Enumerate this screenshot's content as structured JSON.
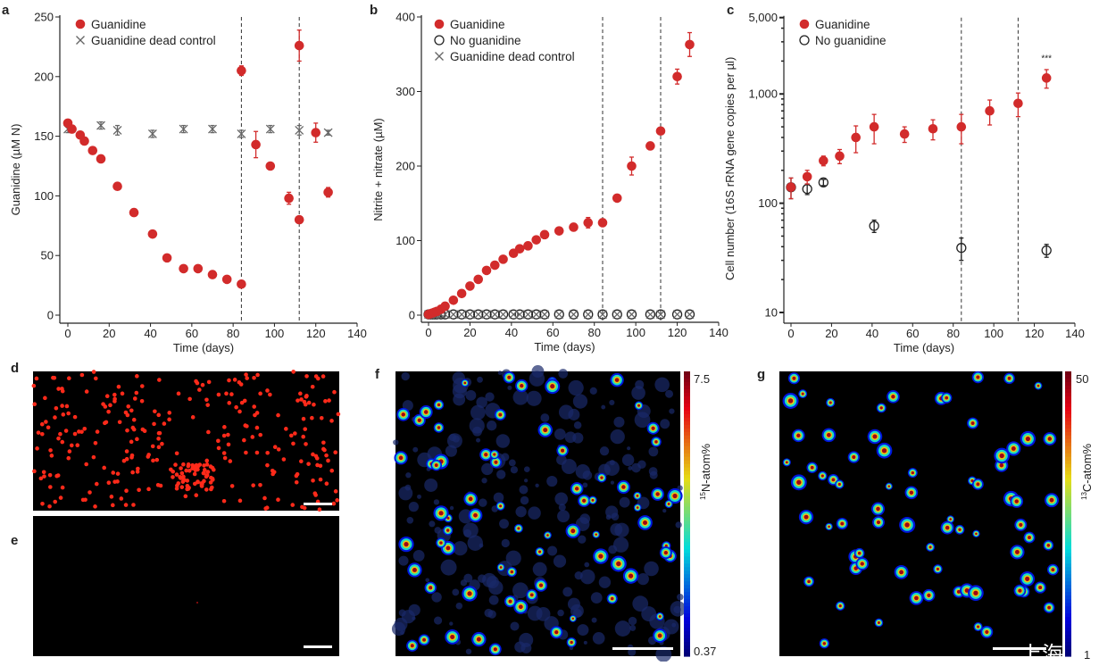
{
  "panels": {
    "a": "a",
    "b": "b",
    "c": "c",
    "d": "d",
    "e": "e",
    "f": "f",
    "g": "g"
  },
  "colors": {
    "guanidine": "#d22b2b",
    "control": "#666666",
    "open": "#222222"
  },
  "chart_data": [
    {
      "id": "a",
      "type": "scatter",
      "xlabel": "Time (days)",
      "ylabel": "Guanidine (µM N)",
      "xlim": [
        0,
        140
      ],
      "ylim": [
        0,
        250
      ],
      "xticks": [
        0,
        20,
        40,
        60,
        80,
        100,
        120,
        140
      ],
      "yticks": [
        0,
        50,
        100,
        150,
        200,
        250
      ],
      "vlines": [
        84,
        112
      ],
      "legend_position": "top-left",
      "series": [
        {
          "name": "Guanidine",
          "marker": "filled-circle",
          "x": [
            0,
            2,
            6,
            8,
            12,
            16,
            24,
            32,
            41,
            48,
            56,
            63,
            70,
            77,
            84,
            84,
            91,
            98,
            107,
            112,
            112,
            120,
            126
          ],
          "y": [
            161,
            156,
            151,
            146,
            138,
            131,
            108,
            86,
            68,
            48,
            39,
            39,
            34,
            30,
            26,
            205,
            143,
            125,
            98,
            80,
            226,
            153,
            103
          ],
          "err": [
            0,
            0,
            0,
            0,
            0,
            0,
            0,
            0,
            0,
            0,
            0,
            0,
            0,
            0,
            0,
            4,
            11,
            0,
            5,
            0,
            13,
            8,
            4
          ]
        },
        {
          "name": "Guanidine dead control",
          "marker": "cross",
          "x": [
            0,
            16,
            24,
            41,
            56,
            70,
            84,
            98,
            112,
            126
          ],
          "y": [
            156,
            159,
            155,
            152,
            156,
            156,
            152,
            156,
            155,
            153
          ],
          "err": [
            3,
            3,
            4,
            3,
            3,
            3,
            3,
            3,
            4,
            2
          ]
        }
      ]
    },
    {
      "id": "b",
      "type": "scatter",
      "xlabel": "Time (days)",
      "ylabel": "Nitrite + nitrate (µM)",
      "xlim": [
        0,
        140
      ],
      "ylim": [
        0,
        400
      ],
      "xticks": [
        0,
        20,
        40,
        60,
        80,
        100,
        120,
        140
      ],
      "yticks": [
        0,
        100,
        200,
        300,
        400
      ],
      "vlines": [
        84,
        112
      ],
      "legend_position": "top-left",
      "series": [
        {
          "name": "Guanidine",
          "marker": "filled-circle",
          "x": [
            0,
            1,
            2,
            3,
            4,
            6,
            8,
            12,
            16,
            20,
            24,
            28,
            32,
            36,
            41,
            44,
            48,
            52,
            56,
            63,
            70,
            77,
            84,
            91,
            98,
            107,
            112,
            120,
            126
          ],
          "y": [
            1,
            2,
            3,
            4,
            5,
            8,
            12,
            20,
            29,
            39,
            48,
            60,
            67,
            75,
            83,
            89,
            93,
            101,
            108,
            113,
            118,
            124,
            124,
            157,
            200,
            227,
            247,
            320,
            363
          ],
          "err": [
            0,
            0,
            0,
            0,
            0,
            0,
            0,
            0,
            0,
            0,
            0,
            0,
            0,
            0,
            0,
            0,
            0,
            0,
            0,
            0,
            0,
            7,
            0,
            0,
            12,
            0,
            0,
            10,
            16
          ]
        },
        {
          "name": "No guanidine",
          "marker": "open-circle",
          "x": [
            0,
            1,
            2,
            3,
            4,
            6,
            8,
            12,
            16,
            20,
            24,
            28,
            32,
            36,
            41,
            44,
            48,
            52,
            56,
            63,
            70,
            77,
            84,
            91,
            98,
            107,
            112,
            120,
            126
          ],
          "y": [
            1,
            1,
            1,
            1,
            1,
            1,
            1,
            1,
            1,
            1,
            1,
            1,
            1,
            1,
            1,
            1,
            1,
            1,
            1,
            1,
            1,
            1,
            1,
            1,
            1,
            1,
            1,
            1,
            1
          ],
          "err": []
        },
        {
          "name": "Guanidine dead control",
          "marker": "cross",
          "x": [
            0,
            1,
            2,
            3,
            4,
            6,
            8,
            12,
            16,
            20,
            24,
            28,
            32,
            36,
            41,
            44,
            48,
            52,
            56,
            63,
            70,
            77,
            84,
            91,
            98,
            107,
            112,
            120,
            126
          ],
          "y": [
            1,
            1,
            1,
            1,
            1,
            1,
            1,
            1,
            1,
            1,
            1,
            1,
            1,
            1,
            1,
            1,
            1,
            1,
            1,
            1,
            1,
            1,
            1,
            1,
            1,
            1,
            1,
            1,
            1
          ],
          "err": []
        }
      ]
    },
    {
      "id": "c",
      "type": "scatter",
      "yscale": "log",
      "xlabel": "Time (days)",
      "ylabel": "Cell number (16S rRNA gene copies per µl)",
      "xlim": [
        0,
        140
      ],
      "ylim": [
        8,
        5000
      ],
      "xticks": [
        0,
        20,
        40,
        60,
        80,
        100,
        120,
        140
      ],
      "yticks": [
        10,
        100,
        1000,
        5000
      ],
      "ytick_labels": [
        "10",
        "100",
        "1,000",
        "5,000"
      ],
      "vlines": [
        84,
        112
      ],
      "legend_position": "top-left",
      "annotations": [
        {
          "x": 126,
          "y": 2000,
          "text": "***"
        }
      ],
      "series": [
        {
          "name": "Guanidine",
          "marker": "filled-circle",
          "x": [
            0,
            8,
            16,
            24,
            32,
            41,
            56,
            70,
            84,
            98,
            112,
            126
          ],
          "y": [
            140,
            175,
            245,
            270,
            400,
            500,
            430,
            480,
            500,
            700,
            820,
            1400
          ],
          "err": [
            30,
            25,
            25,
            40,
            110,
            150,
            70,
            100,
            150,
            180,
            200,
            270
          ]
        },
        {
          "name": "No guanidine",
          "marker": "open-circle",
          "x": [
            0,
            8,
            16,
            41,
            84,
            126
          ],
          "y": [
            140,
            135,
            155,
            62,
            39,
            37
          ],
          "err": [
            30,
            15,
            10,
            8,
            9,
            5
          ]
        }
      ]
    }
  ],
  "images": {
    "f": {
      "colorbar_max": "7.5",
      "colorbar_min": "0.37",
      "colorbar_label_sup": "15",
      "colorbar_label": "N-atom%"
    },
    "g": {
      "colorbar_max": "50",
      "colorbar_min": "1",
      "colorbar_label_sup": "13",
      "colorbar_label": "C-atom%"
    }
  },
  "watermark": "上海"
}
